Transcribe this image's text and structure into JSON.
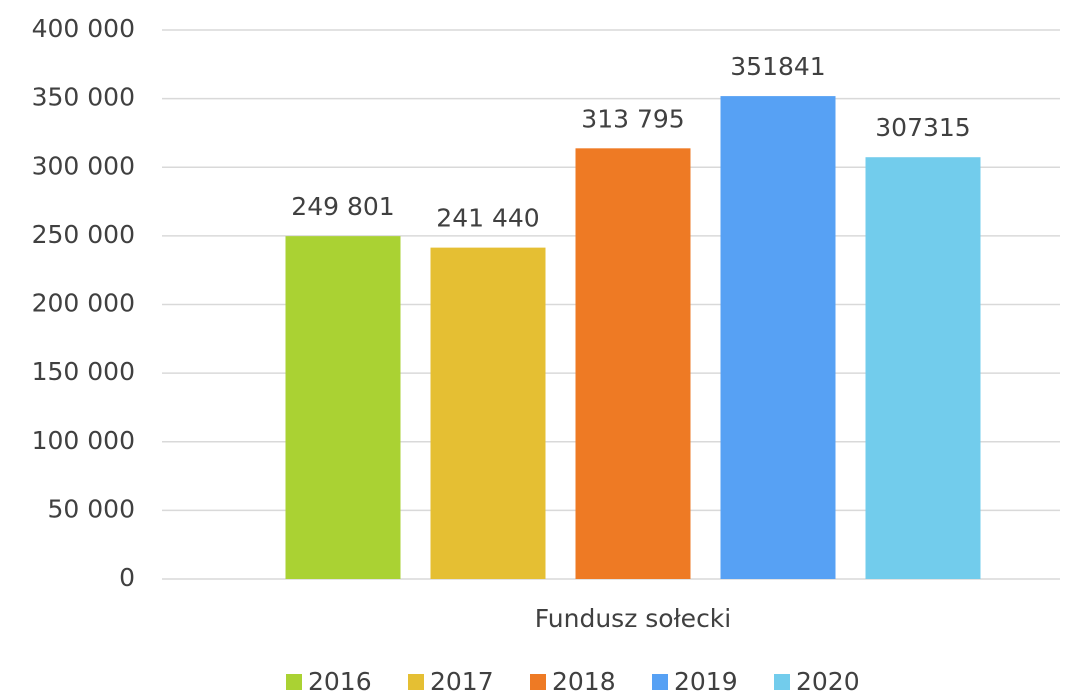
{
  "chart_data": {
    "type": "bar",
    "categories": [
      "Fundusz sołecki"
    ],
    "series": [
      {
        "name": "2016",
        "color": "#aad233",
        "values": [
          249801
        ],
        "value_labels": [
          "249 801"
        ]
      },
      {
        "name": "2017",
        "color": "#e5bf33",
        "values": [
          241440
        ],
        "value_labels": [
          "241 440"
        ]
      },
      {
        "name": "2018",
        "color": "#ee7a24",
        "values": [
          313795
        ],
        "value_labels": [
          "313 795"
        ]
      },
      {
        "name": "2019",
        "color": "#57a1f4",
        "values": [
          351841
        ]
      },
      {
        "name": "2020",
        "color": "#72ccec",
        "values": [
          307315
        ]
      }
    ],
    "ylim": [
      0,
      400000
    ],
    "yticks": [
      0,
      {
        "value": 50000,
        "label": "50 000"
      },
      {
        "value": 100000,
        "label": "100 000"
      },
      {
        "value": 150000,
        "label": "150 000"
      },
      {
        "value": 200000,
        "label": "200 000"
      },
      {
        "value": 250000,
        "label": "250 000"
      },
      {
        "value": 300000,
        "label": "300 000"
      },
      {
        "value": 350000,
        "label": "350 000"
      },
      {
        "value": 400000,
        "label": "400 000"
      }
    ],
    "grid": true,
    "legend": "bottom"
  }
}
